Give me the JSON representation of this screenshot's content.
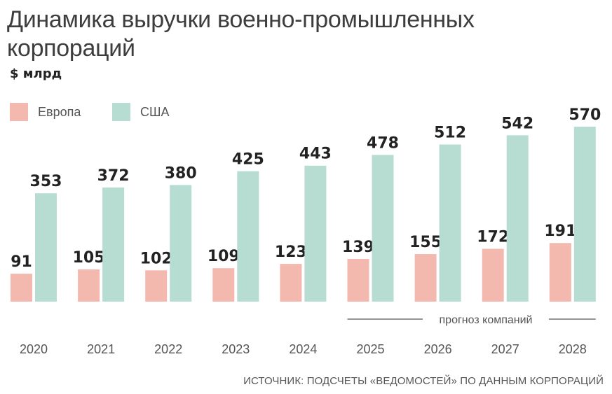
{
  "title": "Динамика выручки военно-промышленных корпораций",
  "unit": "$ млрд",
  "source": "ИСТОЧНИК: ПОДСЧЕТЫ «ВЕДОМОСТЕЙ» ПО ДАННЫМ КОРПОРАЦИЙ",
  "forecast_label": "прогноз компаний",
  "colors": {
    "europe": "#f4b9ae",
    "usa": "#b7ddd3"
  },
  "chart_data": {
    "type": "bar",
    "title": "Динамика выручки военно-промышленных корпораций",
    "ylabel": "$ млрд",
    "categories": [
      "2020",
      "2021",
      "2022",
      "2023",
      "2024",
      "2025",
      "2026",
      "2027",
      "2028"
    ],
    "series": [
      {
        "name": "Европа",
        "values": [
          91,
          105,
          102,
          109,
          123,
          139,
          155,
          172,
          191
        ]
      },
      {
        "name": "США",
        "values": [
          353,
          372,
          380,
          425,
          443,
          478,
          512,
          542,
          570
        ]
      }
    ],
    "forecast_from": "2025",
    "legend": "top-left",
    "grid": false
  }
}
